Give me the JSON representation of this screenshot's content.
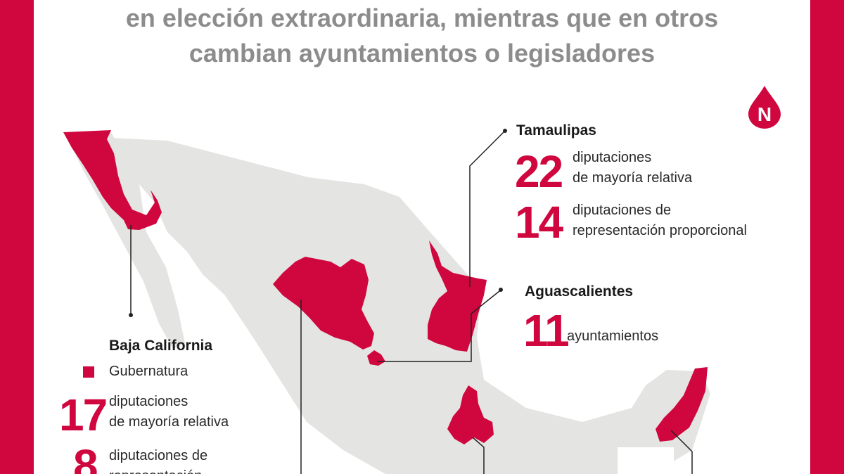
{
  "headline": {
    "line1": "en elección extraordinaria, mientras que en otros",
    "line2": "cambian ayuntamientos o legisladores"
  },
  "logo": {
    "letter": "N",
    "icon": "drop-n-logo"
  },
  "colors": {
    "accent": "#d0063e",
    "land": "#e4e5e2",
    "headline": "#8c8c8c"
  },
  "states": {
    "tamaulipas": {
      "name": "Tamaulipas",
      "stats": [
        {
          "number": "22",
          "line1": "diputaciones",
          "line2": "de mayoría relativa"
        },
        {
          "number": "14",
          "line1": "diputaciones de",
          "line2": "representación proporcional"
        }
      ]
    },
    "aguascalientes": {
      "name": "Aguascalientes",
      "stats": [
        {
          "number": "11",
          "line1": "ayuntamientos"
        }
      ]
    },
    "baja_california": {
      "name": "Baja California",
      "gubernatura": "Gubernatura",
      "stats": [
        {
          "number": "17",
          "line1": "diputaciones",
          "line2": "de mayoría relativa"
        },
        {
          "number": "8",
          "line1": "diputaciones de",
          "line2": "representación"
        }
      ]
    }
  }
}
